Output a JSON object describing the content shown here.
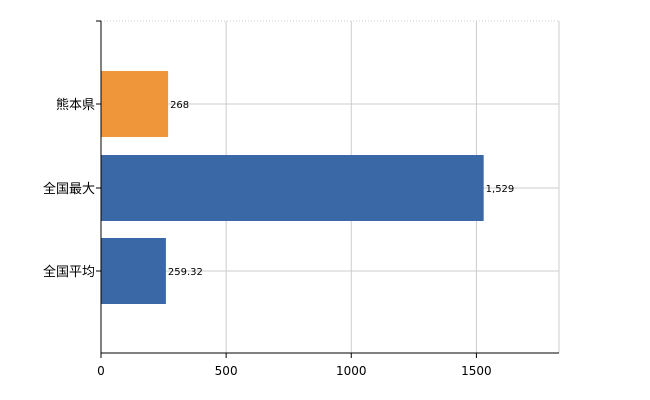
{
  "chart_data": {
    "type": "bar",
    "orientation": "horizontal",
    "categories": [
      "熊本県",
      "全国最大",
      "全国平均"
    ],
    "values": [
      268,
      1529,
      259.32
    ],
    "data_labels": [
      "268",
      "1,529",
      "259.32"
    ],
    "bar_colors": [
      "#f0963a",
      "#3a67a6",
      "#3a67a6"
    ],
    "xlim": [
      0,
      1830
    ],
    "xticks": [
      0,
      500,
      1000,
      1500
    ],
    "xtick_labels": [
      "0",
      "500",
      "1000",
      "1500"
    ],
    "grid": true,
    "gridline_color": "#cccccc",
    "title": "",
    "xlabel": "",
    "ylabel": ""
  }
}
